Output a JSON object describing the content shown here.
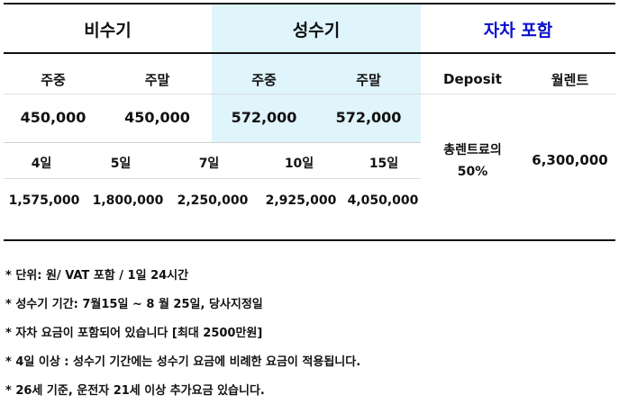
{
  "headers": {
    "off_season": "비수기",
    "peak_season": "성수기",
    "self_drive": "자차 포함"
  },
  "subheaders": {
    "off_weekday": "주중",
    "off_weekend": "주말",
    "peak_weekday": "주중",
    "peak_weekend": "주말",
    "deposit": "Deposit",
    "monthly": "월렌트"
  },
  "daily_rates": {
    "off_weekday": "450,000",
    "off_weekend": "450,000",
    "peak_weekday": "572,000",
    "peak_weekend": "572,000"
  },
  "deposit_value": "총렌트료의\n50%",
  "monthly_value": "6,300,000",
  "duration_labels": [
    "4일",
    "5일",
    "7일",
    "10일",
    "15일"
  ],
  "duration_prices": [
    "1,575,000",
    "1,800,000",
    "2,250,000",
    "2,925,000",
    "4,050,000"
  ],
  "notes": [
    "* 단위: 원/ VAT 포함 / 1일 24시간",
    "* 성수기 기간: 7월15일 ~ 8 월 25일, 당사지정일",
    "* 자차 요금이 포함되어 있습니다 [최대 2500만원]",
    "* 4일 이상 : 성수기 기간에는 성수기 요금에 비례한 요금이 적용됩니다.",
    "* 26세 기준, 운전자 21세 이상 추가요금 있습니다."
  ],
  "colors": {
    "peak_highlight": "#dff4fb",
    "self_drive_text": "#0a10c8"
  }
}
